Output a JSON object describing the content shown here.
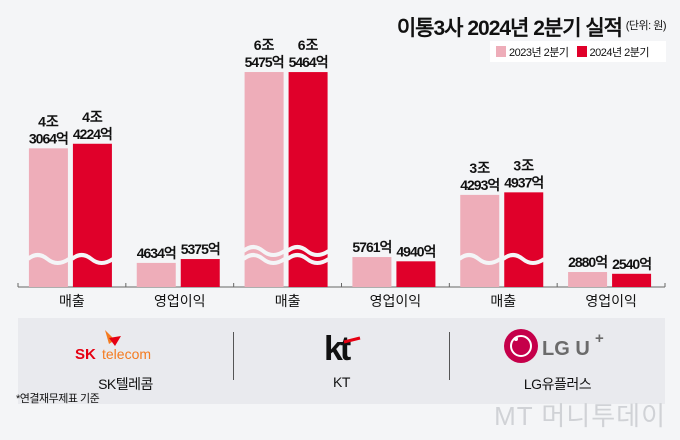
{
  "title": "이통3사 2024년 2분기 실적",
  "unit": "(단위: 원)",
  "colors": {
    "y2023": "#eeadb9",
    "y2024": "#e0002a"
  },
  "chart_data": {
    "type": "bar",
    "title": "이통3사 2024년 2분기 실적",
    "unit": "(단위: 원)",
    "legend_position": "top-right",
    "axis_break": true,
    "categories": [
      "매출",
      "영업이익",
      "매출",
      "영업이익",
      "매출",
      "영업이익"
    ],
    "companies": [
      "SK텔레콤",
      "KT",
      "LG유플러스"
    ],
    "series": [
      {
        "name": "2023년 2분기",
        "values": [
          43064,
          4634,
          65475,
          5761,
          34293,
          2880
        ],
        "labels": [
          [
            "4조",
            "3064억"
          ],
          [
            "",
            "4634억"
          ],
          [
            "6조",
            "5475억"
          ],
          [
            "",
            "5761억"
          ],
          [
            "3조",
            "4293억"
          ],
          [
            "",
            "2880억"
          ]
        ]
      },
      {
        "name": "2024년 2분기",
        "values": [
          44224,
          5375,
          65464,
          4940,
          34937,
          2540
        ],
        "labels": [
          [
            "4조",
            "4224억"
          ],
          [
            "",
            "5375억"
          ],
          [
            "6조",
            "5464억"
          ],
          [
            "",
            "4940억"
          ],
          [
            "3조",
            "4937억"
          ],
          [
            "",
            "2540억"
          ]
        ]
      }
    ],
    "value_unit": "억원"
  },
  "logos": {
    "skt": "SK telecom",
    "kt": "kt",
    "lgu": "LG U+"
  },
  "footnote": "*연결재무제표 기준",
  "watermark": "MT 머니투데이"
}
